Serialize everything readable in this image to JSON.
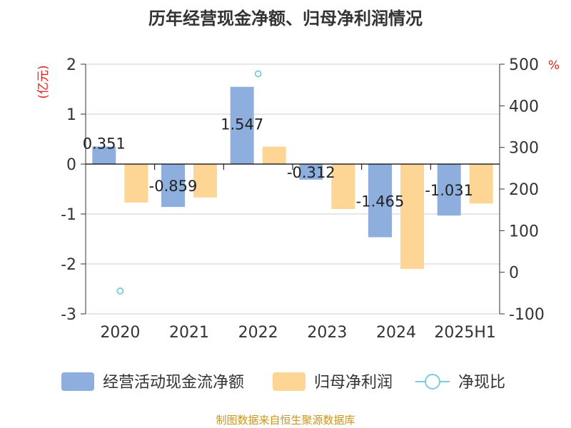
{
  "chart_data": {
    "type": "bar",
    "title": "历年经营现金净额、归母净利润情况",
    "categories": [
      "2020",
      "2021",
      "2022",
      "2023",
      "2024",
      "2025H1"
    ],
    "left_axis": {
      "unit": "(亿元)",
      "ylim": [
        -3,
        2
      ],
      "ticks": [
        2,
        1,
        0,
        -1,
        -2,
        -3
      ]
    },
    "right_axis": {
      "unit": "%",
      "ylim": [
        -100,
        500
      ],
      "ticks": [
        500,
        400,
        300,
        200,
        100,
        0,
        -100
      ]
    },
    "series": [
      {
        "name": "经营活动现金流净额",
        "kind": "bar",
        "axis": "left",
        "color": "#8eaedd",
        "values": [
          0.351,
          -0.859,
          1.547,
          -0.312,
          -1.465,
          -1.031
        ],
        "labels": [
          "0.351",
          "-0.859",
          "1.547",
          "-0.312",
          "-1.465",
          "-1.031"
        ]
      },
      {
        "name": "归母净利润",
        "kind": "bar",
        "axis": "left",
        "color": "#fdd594",
        "values": [
          -0.77,
          -0.67,
          0.35,
          -0.9,
          -2.1,
          -0.79
        ]
      },
      {
        "name": "净现比",
        "kind": "point",
        "axis": "right",
        "color": "#7ccbdc",
        "values": [
          -45,
          null,
          477,
          null,
          null,
          null
        ]
      }
    ],
    "grid": true,
    "legend_position": "bottom"
  },
  "source_note": "制图数据来自恒生聚源数据库"
}
